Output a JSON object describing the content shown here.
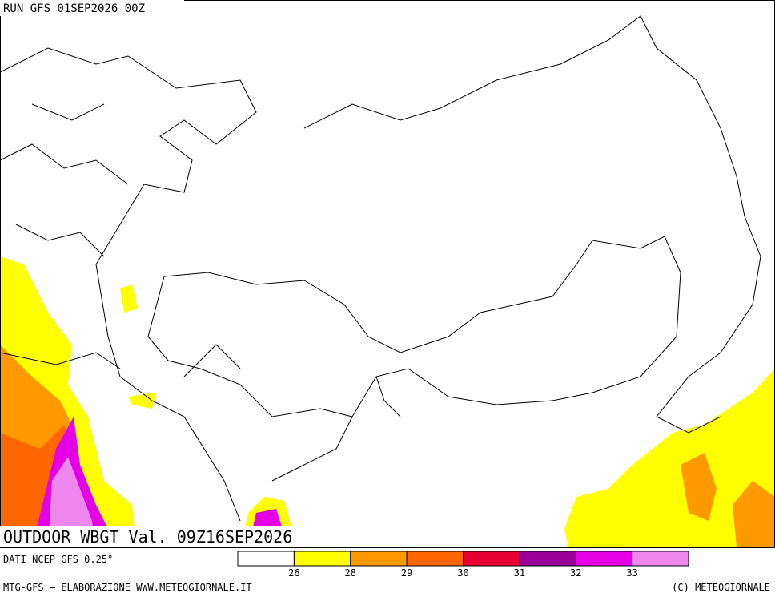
{
  "header": {
    "run": "RUN GFS 01SEP2026 00Z"
  },
  "map": {
    "title": "OUTDOOR WBGT Val. 09Z16SEP2026"
  },
  "legend": {
    "source": "DATI NCEP GFS 0.25°",
    "colors": [
      "#ffffff",
      "#ffff00",
      "#ff9900",
      "#ff6600",
      "#e60033",
      "#990099",
      "#e600e6",
      "#ee88ee"
    ],
    "labels": [
      26,
      28,
      29,
      30,
      31,
      32,
      33
    ]
  },
  "footer": {
    "left": "MTG-GFS — ELABORAZIONE WWW.METEOGIORNALE.IT",
    "right": "(C) METEOGIORNALE"
  }
}
